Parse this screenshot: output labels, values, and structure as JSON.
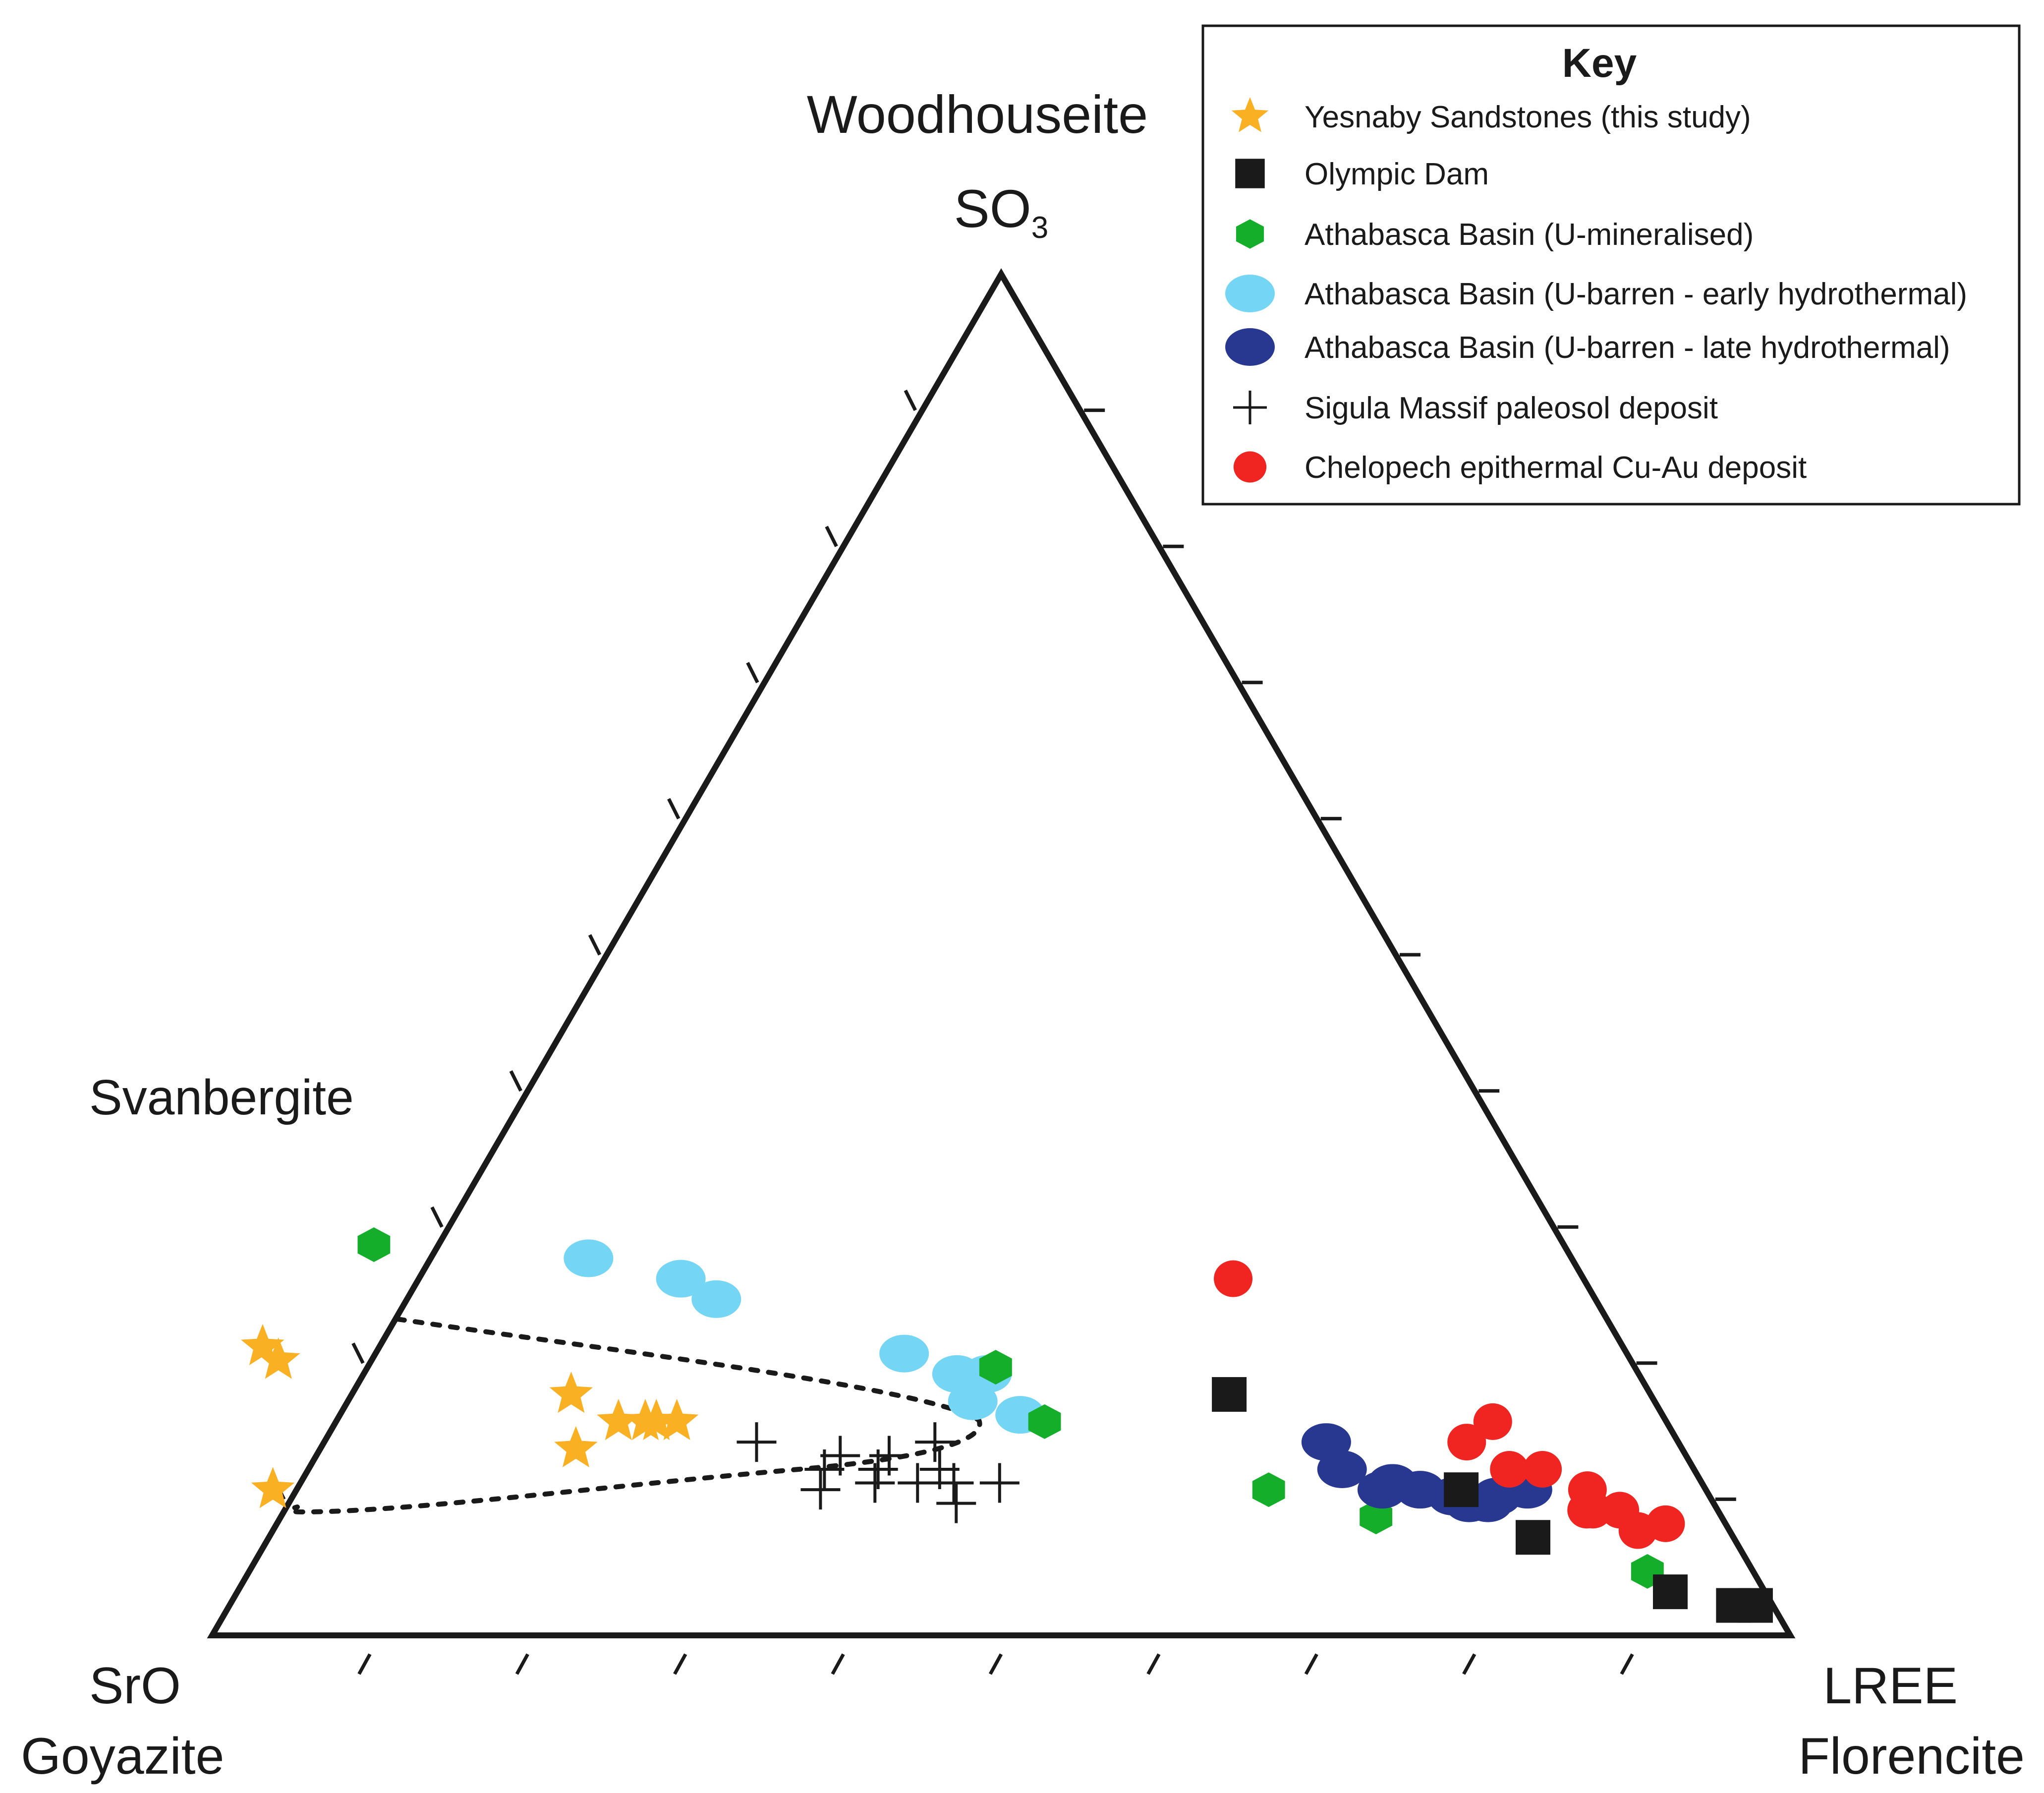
{
  "chart_data": {
    "type": "ternary-scatter",
    "vertices": {
      "top": {
        "name": "Woodhouseite",
        "formula_main": "SO",
        "formula_sub": "3"
      },
      "left": {
        "formula": "SrO",
        "name": "Goyazite"
      },
      "right": {
        "formula": "LREE",
        "name": "Florencite"
      }
    },
    "side_label": "Svanbergite",
    "legend": {
      "title": "Key",
      "entries": [
        {
          "id": "yesnaby",
          "label": "Yesnaby Sandstones (this study)",
          "marker": "star",
          "color": "#F9B023"
        },
        {
          "id": "olympic",
          "label": "Olympic Dam",
          "marker": "square",
          "color": "#1a1a1a"
        },
        {
          "id": "ath_min",
          "label": "Athabasca Basin (U-mineralised)",
          "marker": "hexagon",
          "color": "#14AE2A"
        },
        {
          "id": "ath_early",
          "label": "Athabasca Basin (U-barren - early hydrothermal)",
          "marker": "ellipse",
          "color": "#74D6F4"
        },
        {
          "id": "ath_late",
          "label": "Athabasca Basin (U-barren - late hydrothermal)",
          "marker": "ellipse",
          "color": "#283891"
        },
        {
          "id": "sigula",
          "label": "Sigula Massif paleosol deposit",
          "marker": "cross",
          "color": "#1a1a1a"
        },
        {
          "id": "chelopech",
          "label": "Chelopech epithermal Cu-Au deposit",
          "marker": "circle",
          "color": "#F02420"
        }
      ]
    },
    "point_units": "ternary fractions [SrO, SO3, LREE]",
    "series": [
      {
        "id": "ath_early",
        "points": [
          [
            0.623,
            0.277,
            0.1
          ],
          [
            0.572,
            0.262,
            0.166
          ],
          [
            0.557,
            0.247,
            0.196
          ],
          [
            0.458,
            0.207,
            0.335
          ],
          [
            0.432,
            0.192,
            0.376
          ],
          [
            0.413,
            0.192,
            0.395
          ],
          [
            0.432,
            0.172,
            0.396
          ],
          [
            0.407,
            0.162,
            0.431
          ]
        ]
      },
      {
        "id": "ath_min",
        "points": [
          [
            0.754,
            0.287,
            -0.041
          ],
          [
            0.405,
            0.197,
            0.398
          ],
          [
            0.394,
            0.157,
            0.449
          ],
          [
            0.277,
            0.107,
            0.616
          ],
          [
            0.219,
            0.087,
            0.694
          ],
          [
            0.067,
            0.047,
            0.886
          ]
        ]
      },
      {
        "id": "ath_late",
        "points": [
          [
            0.223,
            0.142,
            0.635
          ],
          [
            0.223,
            0.122,
            0.655
          ],
          [
            0.205,
            0.107,
            0.688
          ],
          [
            0.196,
            0.112,
            0.692
          ],
          [
            0.181,
            0.107,
            0.712
          ],
          [
            0.163,
            0.102,
            0.735
          ],
          [
            0.155,
            0.097,
            0.748
          ],
          [
            0.143,
            0.097,
            0.76
          ],
          [
            0.135,
            0.102,
            0.763
          ],
          [
            0.113,
            0.107,
            0.78
          ]
        ]
      },
      {
        "id": "chelopech",
        "points": [
          [
            0.222,
            0.262,
            0.516
          ],
          [
            0.11,
            0.157,
            0.733
          ],
          [
            0.134,
            0.142,
            0.724
          ],
          [
            0.117,
            0.122,
            0.761
          ],
          [
            0.096,
            0.122,
            0.782
          ],
          [
            0.075,
            0.107,
            0.818
          ],
          [
            0.079,
            0.092,
            0.829
          ],
          [
            0.062,
            0.092,
            0.846
          ],
          [
            0.058,
            0.077,
            0.865
          ],
          [
            0.083,
            0.092,
            0.825
          ],
          [
            0.038,
            0.082,
            0.88
          ]
        ]
      },
      {
        "id": "olympic",
        "points": [
          [
            0.267,
            0.177,
            0.556
          ],
          [
            0.155,
            0.107,
            0.738
          ],
          [
            0.127,
            0.072,
            0.801
          ],
          [
            0.06,
            0.032,
            0.908
          ],
          [
            0.025,
            0.022,
            0.953
          ],
          [
            0.011,
            0.022,
            0.967
          ]
        ]
      },
      {
        "id": "yesnaby",
        "points": [
          [
            0.862,
            0.212,
            -0.074
          ],
          [
            0.857,
            0.202,
            -0.059
          ],
          [
            0.908,
            0.107,
            -0.015
          ],
          [
            0.701,
            0.137,
            0.162
          ],
          [
            0.684,
            0.177,
            0.139
          ],
          [
            0.664,
            0.157,
            0.179
          ],
          [
            0.647,
            0.157,
            0.196
          ],
          [
            0.64,
            0.157,
            0.203
          ],
          [
            0.627,
            0.157,
            0.216
          ]
        ]
      },
      {
        "id": "sigula",
        "points": [
          [
            0.584,
            0.142,
            0.274
          ],
          [
            0.551,
            0.122,
            0.327
          ],
          [
            0.561,
            0.107,
            0.332
          ],
          [
            0.524,
            0.112,
            0.364
          ],
          [
            0.536,
            0.132,
            0.332
          ],
          [
            0.517,
            0.122,
            0.361
          ],
          [
            0.505,
            0.132,
            0.363
          ],
          [
            0.497,
            0.112,
            0.391
          ],
          [
            0.48,
            0.097,
            0.423
          ],
          [
            0.474,
            0.112,
            0.414
          ],
          [
            0.478,
            0.122,
            0.4
          ],
          [
            0.471,
            0.142,
            0.387
          ],
          [
            0.445,
            0.112,
            0.443
          ]
        ]
      }
    ]
  }
}
